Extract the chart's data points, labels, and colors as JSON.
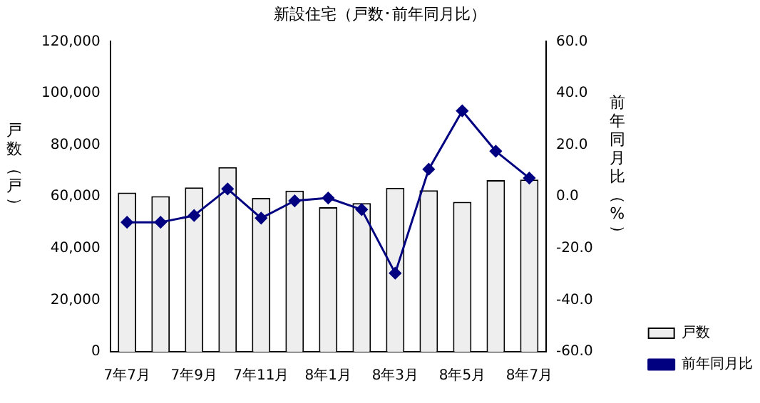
{
  "chart_data": {
    "type": "bar",
    "title": "新設住宅（戸数･前年同月比）",
    "ylabel": "戸数（戸）",
    "y2label": "前年同月比（%）",
    "categories": [
      "7年7月",
      null,
      "7年9月",
      null,
      "7年11月",
      null,
      "8年1月",
      null,
      "8年3月",
      null,
      "8年5月",
      null,
      "8年7月"
    ],
    "series": [
      {
        "name": "戸数",
        "color": "#eeeeee",
        "values": [
          61600,
          60200,
          63600,
          71400,
          59500,
          62300,
          55900,
          57500,
          63400,
          62500,
          58000,
          66400,
          66600
        ]
      },
      {
        "name": "前年同月比",
        "type": "line",
        "axis": "y2",
        "color": "#000080",
        "marker": "diamond",
        "values": [
          -9.9,
          -9.9,
          -7.3,
          3.0,
          -8.3,
          -1.6,
          -0.5,
          -5.0,
          -29.6,
          10.6,
          33.2,
          17.6,
          7.2
        ]
      }
    ],
    "ylim": [
      0,
      120000
    ],
    "yticks": [
      0,
      {
        "value": 20000,
        "label": "20,000"
      },
      {
        "value": 40000,
        "label": "40,000"
      },
      {
        "value": 60000,
        "label": "60,000"
      },
      {
        "value": 80000,
        "label": "80,000"
      },
      {
        "value": 100000,
        "label": "100,000"
      },
      {
        "value": 120000,
        "label": "120,000"
      }
    ],
    "y2lim": [
      -60,
      60
    ],
    "y2ticks": [
      {
        "value": -60,
        "label": "-60.0"
      },
      {
        "value": -40,
        "label": "-40.0"
      },
      {
        "value": -20,
        "label": "-20.0"
      },
      {
        "value": 0,
        "label": "0.0"
      },
      {
        "value": 20,
        "label": "20.0"
      },
      {
        "value": 40,
        "label": "40.0"
      },
      {
        "value": 60,
        "label": "60.0"
      }
    ],
    "legend": "bottom right",
    "grid": false
  }
}
